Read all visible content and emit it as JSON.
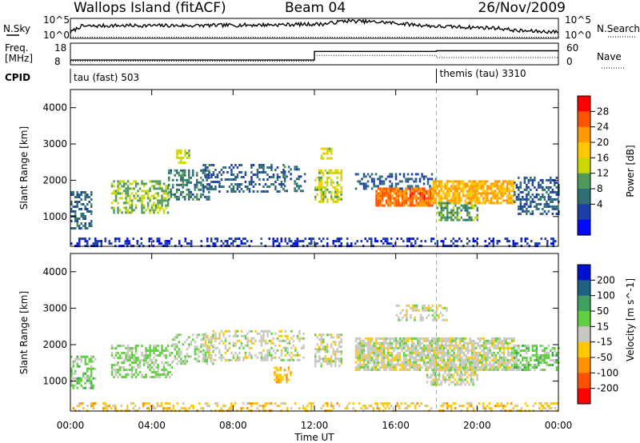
{
  "header": {
    "station": "Wallops Island (fitACF)",
    "beam": "Beam 04",
    "date": "26/Nov/2009"
  },
  "strip": {
    "nsky_label": "N.Sky",
    "nsky_ticks": [
      "10^5",
      "10^0"
    ],
    "nsearch_label": "N.Search",
    "nsearch_ticks": [
      "10^5",
      "10^0"
    ],
    "freq_label": "Freq.",
    "freq_unit": "[MHz]",
    "freq_ticks": [
      "18",
      "8"
    ],
    "nave_label": "Nave",
    "nave_ticks": [
      "60",
      "0"
    ],
    "cpid_label": "CPID",
    "cpid_segments": [
      {
        "name": "tau (fast) 503",
        "start_h": 0.0
      },
      {
        "name": "themis (tau) 3310",
        "start_h": 18.0
      }
    ]
  },
  "axes": {
    "xlabel": "Time UT",
    "ylabel_power": "Slant Range [km]",
    "ylabel_velocity": "Slant Range [km]",
    "x_ticks": [
      "00:00",
      "04:00",
      "08:00",
      "12:00",
      "16:00",
      "20:00",
      "00:00"
    ],
    "y_ticks": [
      "1000",
      "2000",
      "3000",
      "4000"
    ]
  },
  "colorbars": {
    "power_title": "Power [dB]",
    "power_ticks": [
      "28",
      "24",
      "20",
      "16",
      "12",
      "8",
      "4"
    ],
    "power_colors": [
      "#ff0000",
      "#ff5500",
      "#ff9a00",
      "#ffc800",
      "#c8d800",
      "#4f9a5a",
      "#2e6e74",
      "#1e3ea8",
      "#0008ff"
    ],
    "velocity_title": "Velocity [m s^-1]",
    "velocity_ticks": [
      "200",
      "100",
      "50",
      "15",
      "-15",
      "-50",
      "-100",
      "-200"
    ],
    "velocity_colors": [
      "#0010d0",
      "#206080",
      "#40a060",
      "#60d040",
      "#c8c8c0",
      "#ffc800",
      "#ff9000",
      "#ff5000",
      "#ff0000"
    ]
  },
  "chart_data": [
    {
      "type": "line",
      "title": "N.Sky / N.Search",
      "x_range_h": [
        0,
        24
      ],
      "y_range": [
        0,
        5
      ],
      "nsky_profile": [
        {
          "x": 0.0,
          "y": 1.5
        },
        {
          "x": 0.5,
          "y": 3.0
        },
        {
          "x": 2.0,
          "y": 3.2
        },
        {
          "x": 6.0,
          "y": 3.2
        },
        {
          "x": 10.0,
          "y": 3.4
        },
        {
          "x": 12.5,
          "y": 3.6
        },
        {
          "x": 13.5,
          "y": 4.4
        },
        {
          "x": 15.5,
          "y": 4.0
        },
        {
          "x": 18.0,
          "y": 3.0
        },
        {
          "x": 21.0,
          "y": 2.6
        },
        {
          "x": 22.0,
          "y": 1.9
        },
        {
          "x": 24.0,
          "y": 1.6
        }
      ],
      "nsearch_level": 0.3
    },
    {
      "type": "line",
      "title": "Freq. / Nave",
      "x_range_h": [
        0,
        24
      ],
      "freq_range_mhz": [
        8,
        18
      ],
      "nave_range": [
        0,
        60
      ],
      "freq_profile": [
        {
          "x": 0.0,
          "y": 10.2
        },
        {
          "x": 12.0,
          "y": 10.2
        },
        {
          "x": 12.0,
          "y": 14.2
        },
        {
          "x": 18.0,
          "y": 14.2
        },
        {
          "x": 18.0,
          "y": 14.5
        },
        {
          "x": 24.0,
          "y": 14.5
        }
      ],
      "nave_profile": [
        {
          "x": 0.0,
          "y": 10
        },
        {
          "x": 12.0,
          "y": 10
        },
        {
          "x": 12.0,
          "y": 26
        },
        {
          "x": 18.0,
          "y": 26
        },
        {
          "x": 18.0,
          "y": 20
        },
        {
          "x": 24.0,
          "y": 20
        }
      ]
    },
    {
      "type": "heatmap",
      "title": "Power [dB]",
      "xlabel": "",
      "ylabel": "Slant Range [km]",
      "x_range_h": [
        0,
        24
      ],
      "y_range_km": [
        180,
        4500
      ],
      "value_range": [
        0,
        30
      ],
      "regions": [
        {
          "t0": 0.0,
          "t1": 1.0,
          "r0": 700,
          "r1": 1700,
          "power": 8,
          "density": 0.5
        },
        {
          "t0": 2.0,
          "t1": 4.8,
          "r0": 1100,
          "r1": 2000,
          "power": 13,
          "density": 0.55
        },
        {
          "t0": 4.8,
          "t1": 6.8,
          "r0": 1500,
          "r1": 2300,
          "power": 9,
          "density": 0.45
        },
        {
          "t0": 5.2,
          "t1": 5.8,
          "r0": 2500,
          "r1": 2850,
          "power": 14,
          "density": 0.6
        },
        {
          "t0": 6.5,
          "t1": 10.5,
          "r0": 1700,
          "r1": 2450,
          "power": 7,
          "density": 0.4
        },
        {
          "t0": 10.5,
          "t1": 11.5,
          "r0": 1700,
          "r1": 2400,
          "power": 8,
          "density": 0.35
        },
        {
          "t0": 12.0,
          "t1": 13.3,
          "r0": 1400,
          "r1": 2300,
          "power": 15,
          "density": 0.55
        },
        {
          "t0": 12.3,
          "t1": 12.8,
          "r0": 2600,
          "r1": 2900,
          "power": 16,
          "density": 0.6
        },
        {
          "t0": 14.0,
          "t1": 18.0,
          "r0": 1800,
          "r1": 2200,
          "power": 7,
          "density": 0.45
        },
        {
          "t0": 15.0,
          "t1": 17.8,
          "r0": 1300,
          "r1": 1800,
          "power": 24,
          "density": 0.85
        },
        {
          "t0": 17.8,
          "t1": 21.8,
          "r0": 1400,
          "r1": 2000,
          "power": 20,
          "density": 0.8
        },
        {
          "t0": 18.0,
          "t1": 20.0,
          "r0": 900,
          "r1": 1400,
          "power": 12,
          "density": 0.55
        },
        {
          "t0": 21.8,
          "t1": 24.0,
          "r0": 1100,
          "r1": 2100,
          "power": 7,
          "density": 0.5
        },
        {
          "t0": 0.0,
          "t1": 24.0,
          "r0": 180,
          "r1": 420,
          "power": 4,
          "density": 0.35
        }
      ]
    },
    {
      "type": "heatmap",
      "title": "Velocity [m s^-1]",
      "xlabel": "Time UT",
      "ylabel": "Slant Range [km]",
      "x_range_h": [
        0,
        24
      ],
      "y_range_km": [
        180,
        4500
      ],
      "value_range": [
        -200,
        200
      ],
      "regions": [
        {
          "t0": 0.0,
          "t1": 1.2,
          "r0": 800,
          "r1": 1700,
          "velocity": 40,
          "density": 0.5
        },
        {
          "t0": 2.0,
          "t1": 5.0,
          "r0": 1100,
          "r1": 2000,
          "velocity": 30,
          "density": 0.55
        },
        {
          "t0": 5.0,
          "t1": 7.0,
          "r0": 1500,
          "r1": 2300,
          "velocity": 20,
          "density": 0.45
        },
        {
          "t0": 6.5,
          "t1": 11.5,
          "r0": 1600,
          "r1": 2400,
          "velocity": 0,
          "density": 0.4
        },
        {
          "t0": 10.0,
          "t1": 10.8,
          "r0": 1000,
          "r1": 1400,
          "velocity": -60,
          "density": 0.5
        },
        {
          "t0": 12.0,
          "t1": 13.3,
          "r0": 1400,
          "r1": 2300,
          "velocity": 0,
          "density": 0.5
        },
        {
          "t0": 14.0,
          "t1": 21.8,
          "r0": 1300,
          "r1": 2200,
          "velocity": 0,
          "density": 0.8
        },
        {
          "t0": 17.5,
          "t1": 20.0,
          "r0": 900,
          "r1": 1400,
          "velocity": 0,
          "density": 0.55
        },
        {
          "t0": 16.0,
          "t1": 18.5,
          "r0": 2700,
          "r1": 3100,
          "velocity": 0,
          "density": 0.4
        },
        {
          "t0": 21.8,
          "t1": 24.0,
          "r0": 1300,
          "r1": 2000,
          "velocity": 40,
          "density": 0.55
        },
        {
          "t0": 0.0,
          "t1": 24.0,
          "r0": 180,
          "r1": 420,
          "velocity": -40,
          "density": 0.35
        }
      ]
    }
  ]
}
